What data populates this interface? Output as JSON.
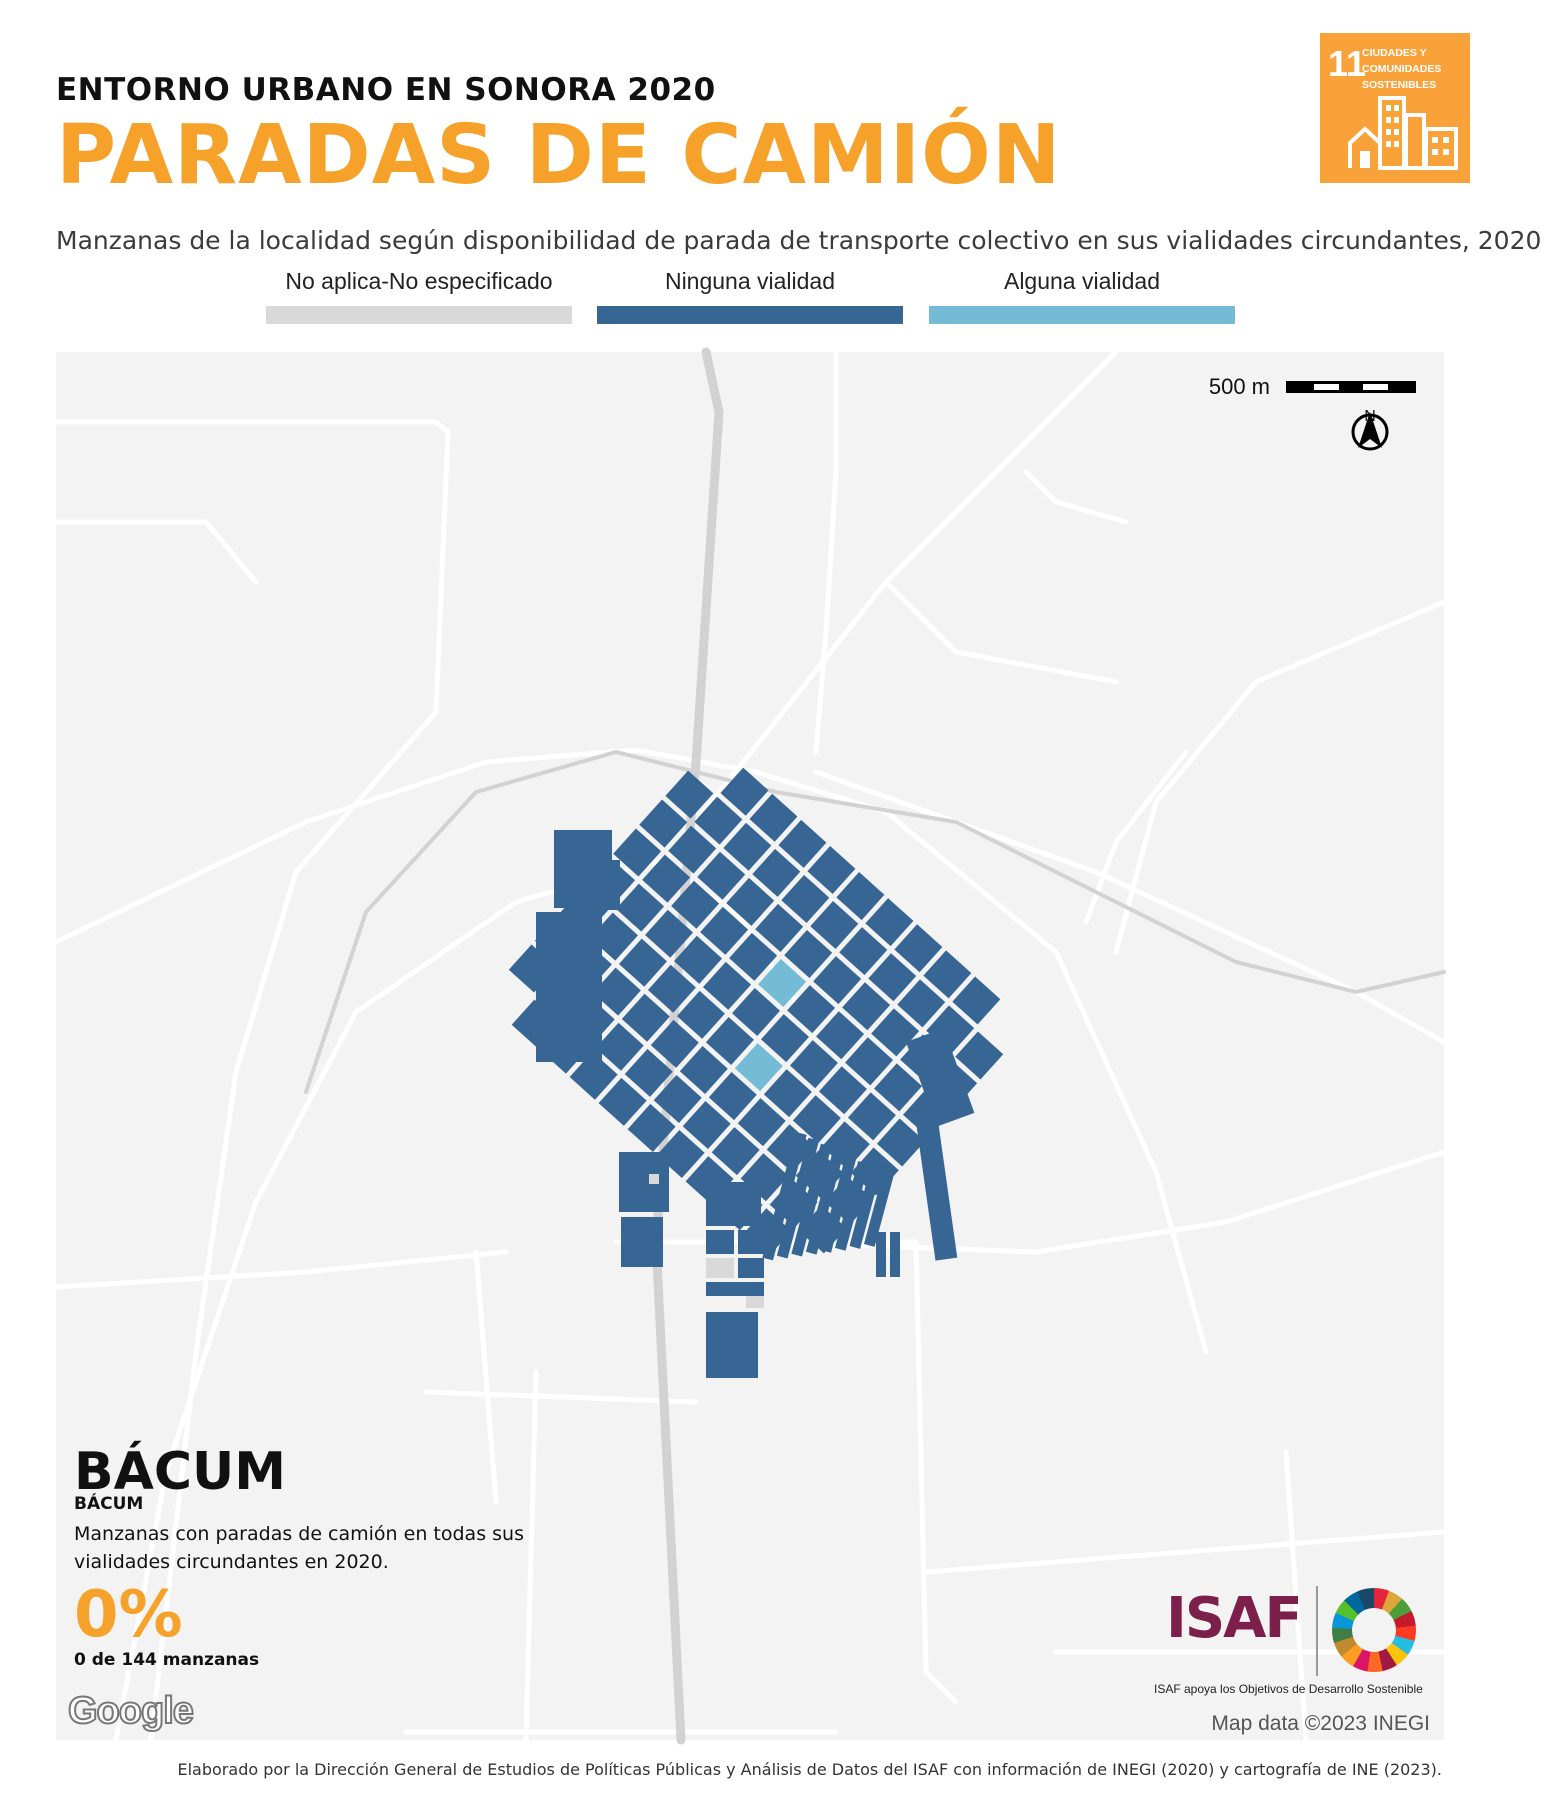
{
  "header": {
    "supertitle": "ENTORNO URBANO EN SONORA 2020",
    "title": "PARADAS DE CAMIÓN",
    "subtitle": "Manzanas de la localidad según disponibilidad de parada de transporte colectivo en sus vialidades circundantes, 2020"
  },
  "sdg_badge": {
    "number": "11",
    "text": "CIUDADES Y COMUNIDADES SOSTENIBLES",
    "color": "#f9a23a"
  },
  "legend": [
    {
      "label": "No aplica-No especificado",
      "color": "#d9d9d9"
    },
    {
      "label": "Ninguna vialidad",
      "color": "#376694"
    },
    {
      "label": "Alguna vialidad",
      "color": "#74bcd6"
    }
  ],
  "map": {
    "scale_label": "500 m",
    "north_label": "N",
    "background_color": "#f3f3f3",
    "road_color": "#ffffff",
    "highway_color": "#d2d2d2"
  },
  "summary": {
    "locality": "BÁCUM",
    "locality_sub": "BÁCUM",
    "description": "Manzanas con paradas de camión en todas sus vialidades circundantes en 2020.",
    "percent": "0%",
    "count": "0 de 144 manzanas"
  },
  "attribution": {
    "google": "Google",
    "map_data": "Map data ©2023 INEGI"
  },
  "isaf": {
    "logo": "ISAF",
    "caption": "ISAF apoya los Objetivos de Desarrollo Sostenible"
  },
  "footer": "Elaborado por la Dirección General de Estudios de Políticas Públicas y Análisis de Datos del ISAF con información de INEGI (2020) y cartografía de INE (2023)."
}
